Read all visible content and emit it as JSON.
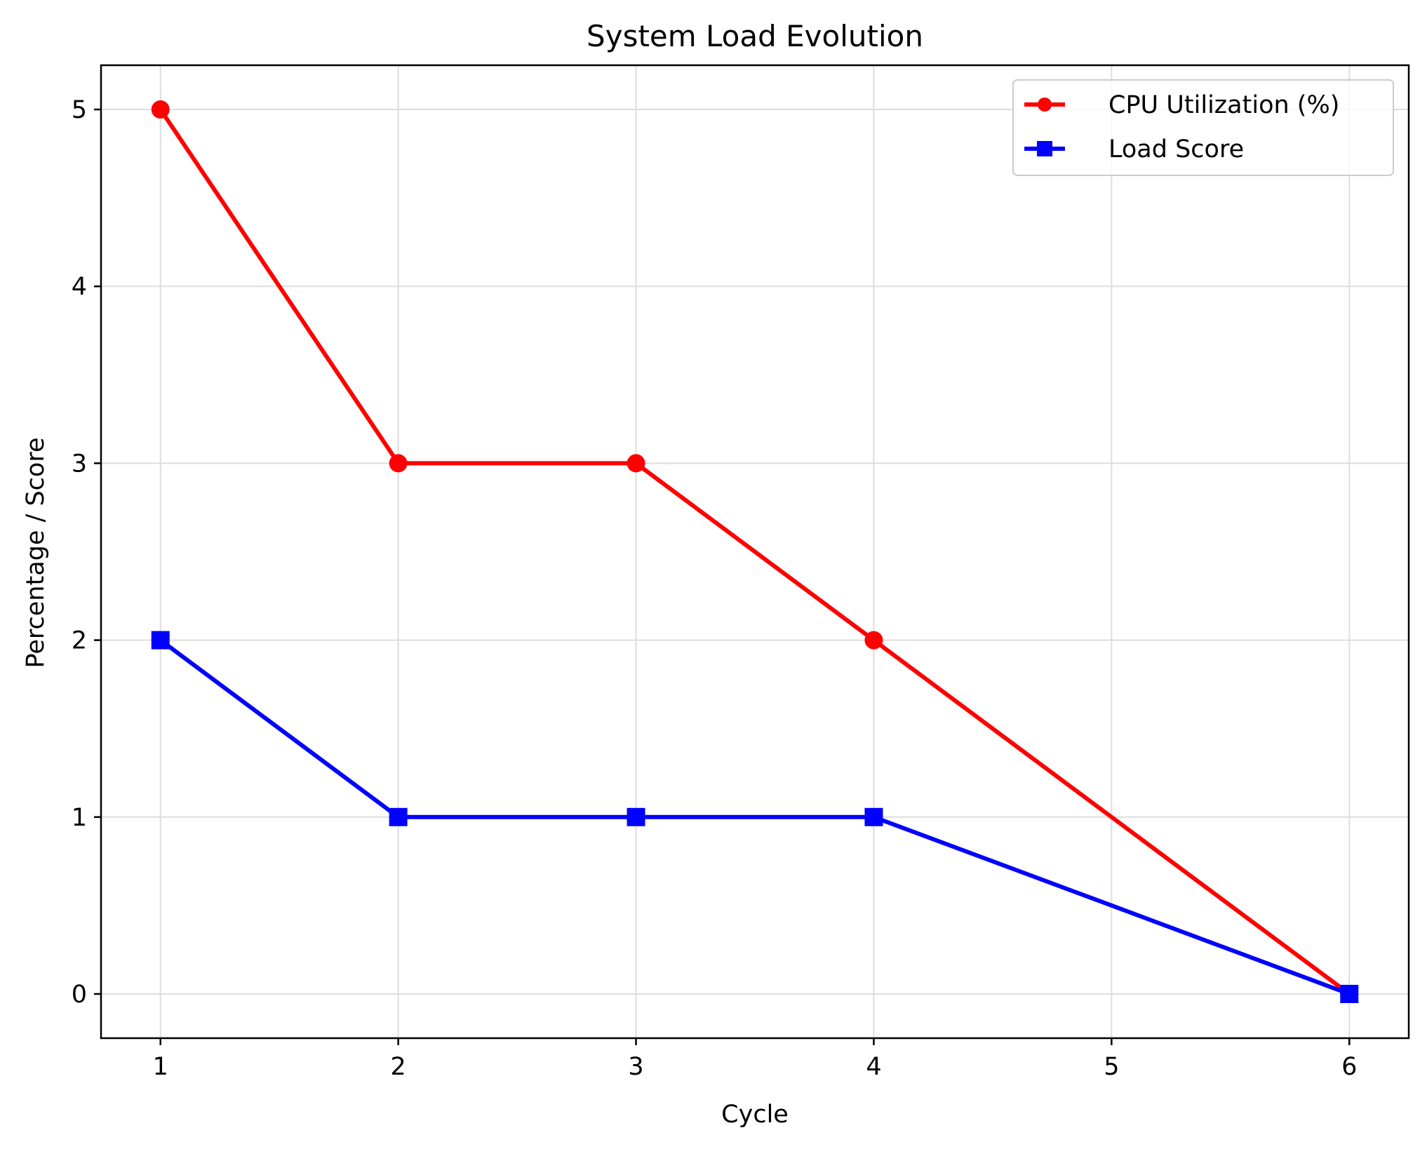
{
  "chart_data": {
    "type": "line",
    "title": "System Load Evolution",
    "xlabel": "Cycle",
    "ylabel": "Percentage / Score",
    "x": [
      1,
      2,
      3,
      4,
      5,
      6
    ],
    "xlim": [
      0.75,
      6.25
    ],
    "ylim": [
      -0.25,
      5.25
    ],
    "xticks": [
      "1",
      "2",
      "3",
      "4",
      "5",
      "6"
    ],
    "yticks": [
      "0",
      "1",
      "2",
      "3",
      "4",
      "5"
    ],
    "grid": true,
    "legend_position": "top-right",
    "series": [
      {
        "name": "CPU Utilization (%)",
        "color": "#ff0000",
        "marker": "circle",
        "values": [
          5,
          3,
          3,
          2,
          1,
          0
        ]
      },
      {
        "name": "Load Score",
        "color": "#0000ff",
        "marker": "square",
        "values": [
          2,
          1,
          1,
          1,
          0.5,
          0
        ]
      }
    ]
  }
}
